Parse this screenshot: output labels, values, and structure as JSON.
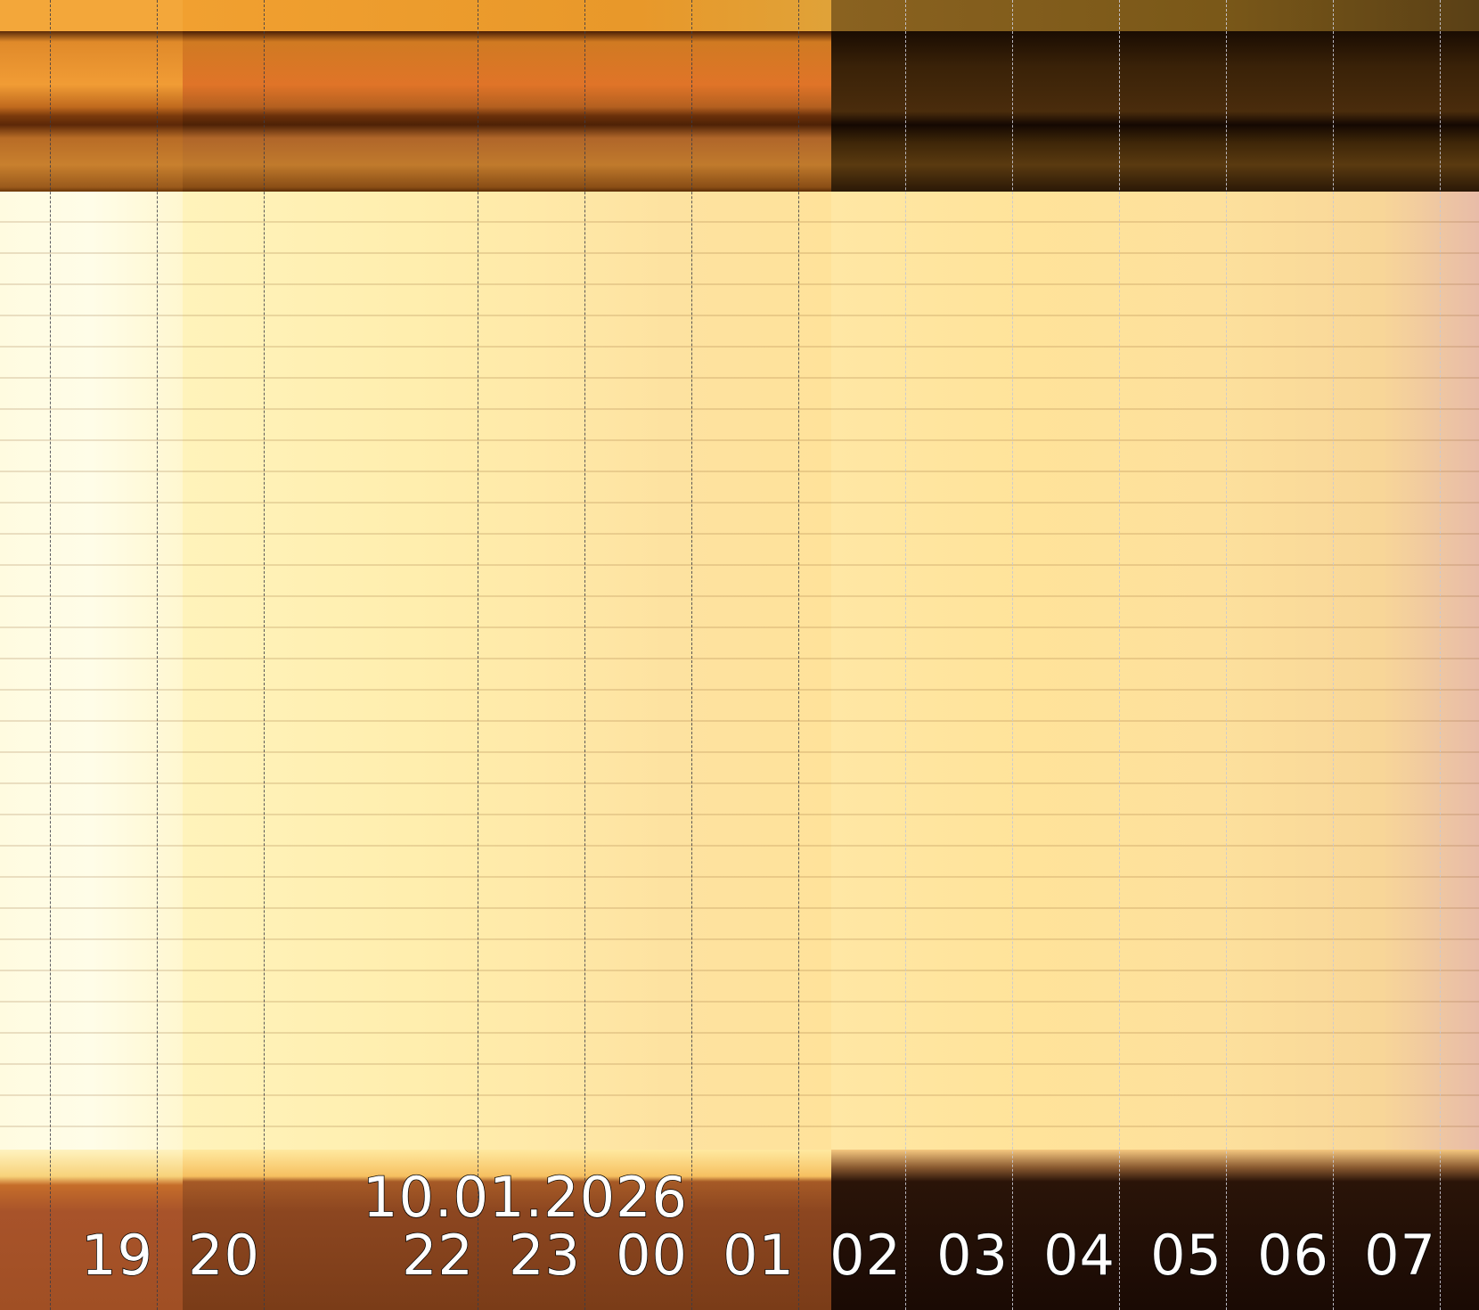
{
  "date_label": "10.01.2026",
  "hour_labels": [
    {
      "hour": "19",
      "text": "19"
    },
    {
      "hour": "20",
      "text": "20"
    },
    {
      "hour": "22",
      "text": "22"
    },
    {
      "hour": "23",
      "text": "23"
    },
    {
      "hour": "00",
      "text": "00"
    },
    {
      "hour": "01",
      "text": "01"
    },
    {
      "hour": "02",
      "text": "02"
    },
    {
      "hour": "03",
      "text": "03"
    },
    {
      "hour": "04",
      "text": "04"
    },
    {
      "hour": "05",
      "text": "05"
    },
    {
      "hour": "06",
      "text": "06"
    },
    {
      "hour": "07",
      "text": "07"
    }
  ],
  "gridline_hours": [
    "19",
    "20",
    "21",
    "23",
    "00",
    "01",
    "02",
    "03",
    "04",
    "05",
    "06",
    "07",
    "08"
  ],
  "date_aligned_to_hour": "00"
}
